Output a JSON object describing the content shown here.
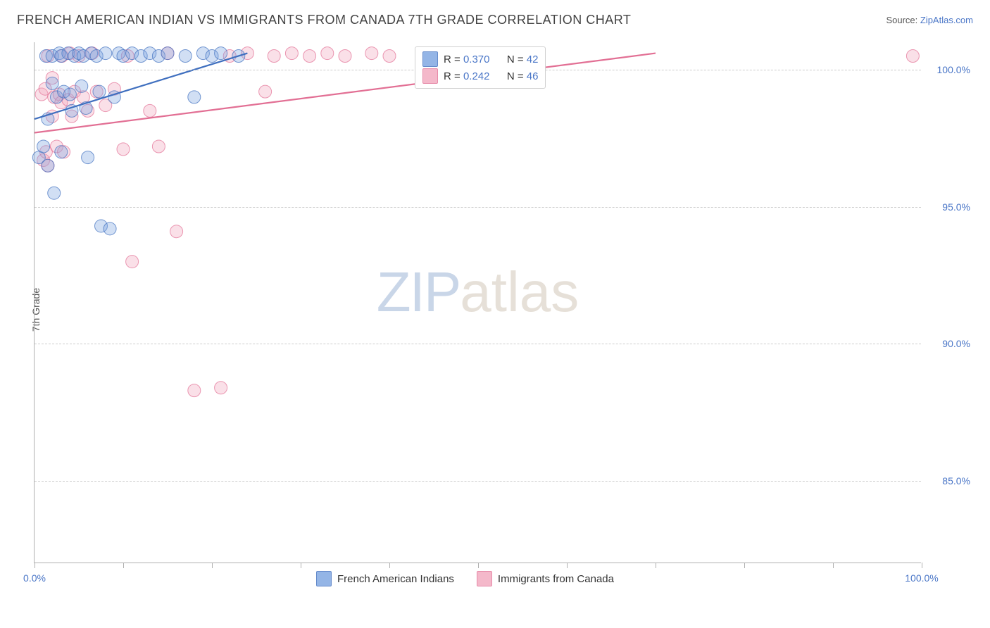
{
  "header": {
    "title": "FRENCH AMERICAN INDIAN VS IMMIGRANTS FROM CANADA 7TH GRADE CORRELATION CHART",
    "source_prefix": "Source: ",
    "source_link": "ZipAtlas.com"
  },
  "chart": {
    "type": "scatter",
    "ylabel": "7th Grade",
    "background_color": "#ffffff",
    "grid_color": "#cccccc",
    "axis_color": "#b0b0b0",
    "xlim": [
      0,
      100
    ],
    "ylim": [
      82,
      101
    ],
    "y_ticks": [
      {
        "value": 100.0,
        "label": "100.0%"
      },
      {
        "value": 95.0,
        "label": "95.0%"
      },
      {
        "value": 90.0,
        "label": "90.0%"
      },
      {
        "value": 85.0,
        "label": "85.0%"
      }
    ],
    "x_tick_positions": [
      0,
      10,
      20,
      30,
      40,
      50,
      60,
      70,
      80,
      90,
      100
    ],
    "x_tick_labels": {
      "start": "0.0%",
      "end": "100.0%"
    },
    "marker_radius": 9,
    "marker_opacity": 0.35,
    "line_width": 2.2,
    "watermark": {
      "zip": "ZIP",
      "atlas": "atlas"
    },
    "series": [
      {
        "id": "blue",
        "label": "French American Indians",
        "color_fill": "#7aa3e0",
        "color_stroke": "#3f6fbf",
        "r_label": "R = ",
        "r_value": "0.370",
        "n_label": "N = ",
        "n_value": "42",
        "trend": {
          "x1": 0,
          "y1": 98.2,
          "x2": 24,
          "y2": 100.6
        },
        "points": [
          [
            0.5,
            96.8
          ],
          [
            1,
            97.2
          ],
          [
            1.3,
            100.5
          ],
          [
            1.5,
            98.2
          ],
          [
            1.5,
            96.5
          ],
          [
            2,
            99.5
          ],
          [
            2,
            100.5
          ],
          [
            2.2,
            95.5
          ],
          [
            2.5,
            99.0
          ],
          [
            2.8,
            100.6
          ],
          [
            3,
            100.5
          ],
          [
            3,
            97.0
          ],
          [
            3.3,
            99.2
          ],
          [
            3.8,
            100.6
          ],
          [
            4,
            99.1
          ],
          [
            4.2,
            98.5
          ],
          [
            4.5,
            100.5
          ],
          [
            5,
            100.6
          ],
          [
            5.3,
            99.4
          ],
          [
            5.5,
            100.5
          ],
          [
            5.8,
            98.6
          ],
          [
            6,
            96.8
          ],
          [
            6.4,
            100.6
          ],
          [
            7,
            100.5
          ],
          [
            7.3,
            99.2
          ],
          [
            7.5,
            94.3
          ],
          [
            8,
            100.6
          ],
          [
            8.5,
            94.2
          ],
          [
            9,
            99.0
          ],
          [
            9.5,
            100.6
          ],
          [
            10,
            100.5
          ],
          [
            11,
            100.6
          ],
          [
            12,
            100.5
          ],
          [
            13,
            100.6
          ],
          [
            14,
            100.5
          ],
          [
            15,
            100.6
          ],
          [
            17,
            100.5
          ],
          [
            18,
            99.0
          ],
          [
            19,
            100.6
          ],
          [
            20,
            100.5
          ],
          [
            21,
            100.6
          ],
          [
            23,
            100.5
          ]
        ]
      },
      {
        "id": "pink",
        "label": "Immigrants from Canada",
        "color_fill": "#f2a7bd",
        "color_stroke": "#e26f94",
        "r_label": "R = ",
        "r_value": "0.242",
        "n_label": "N = ",
        "n_value": "46",
        "trend": {
          "x1": 0,
          "y1": 97.7,
          "x2": 70,
          "y2": 100.6
        },
        "points": [
          [
            0.8,
            99.1
          ],
          [
            1,
            96.7
          ],
          [
            1.2,
            99.3
          ],
          [
            1.3,
            97.0
          ],
          [
            1.5,
            100.5
          ],
          [
            1.5,
            96.5
          ],
          [
            2,
            98.3
          ],
          [
            2,
            99.7
          ],
          [
            2.2,
            99.0
          ],
          [
            2.5,
            97.2
          ],
          [
            2.8,
            99.1
          ],
          [
            3,
            98.8
          ],
          [
            3.1,
            100.5
          ],
          [
            3.3,
            97.0
          ],
          [
            3.8,
            98.9
          ],
          [
            4,
            100.6
          ],
          [
            4.2,
            98.3
          ],
          [
            4.5,
            99.2
          ],
          [
            5,
            100.5
          ],
          [
            5.5,
            99.0
          ],
          [
            6,
            98.5
          ],
          [
            6.5,
            100.6
          ],
          [
            7,
            99.2
          ],
          [
            8,
            98.7
          ],
          [
            9,
            99.3
          ],
          [
            10,
            97.1
          ],
          [
            10.5,
            100.5
          ],
          [
            11,
            93.0
          ],
          [
            13,
            98.5
          ],
          [
            14,
            97.2
          ],
          [
            15,
            100.6
          ],
          [
            16,
            94.1
          ],
          [
            18,
            88.3
          ],
          [
            21,
            88.4
          ],
          [
            22,
            100.5
          ],
          [
            24,
            100.6
          ],
          [
            26,
            99.2
          ],
          [
            27,
            100.5
          ],
          [
            29,
            100.6
          ],
          [
            31,
            100.5
          ],
          [
            33,
            100.6
          ],
          [
            35,
            100.5
          ],
          [
            38,
            100.6
          ],
          [
            40,
            100.5
          ],
          [
            48,
            100.6
          ],
          [
            99,
            100.5
          ]
        ]
      }
    ]
  }
}
